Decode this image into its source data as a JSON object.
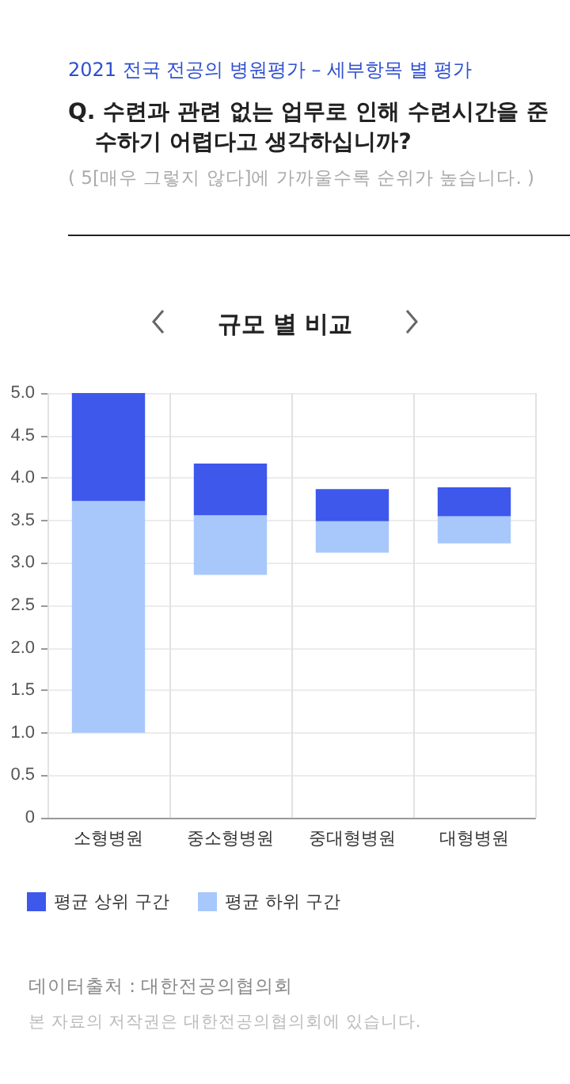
{
  "chart_data": {
    "type": "bar",
    "title": "규모 별 비교",
    "annotations": [
      "2021 전국 전공의 병원평가 – 세부항목 별 평가",
      "Q. 수련과 관련 없는 업무로 인해 수련시간을 준수하기 어렵다고 생각하십니까?",
      "( 5[매우 그렇지 않다]에 가까울수록 순위가 높습니다. )",
      "데이터출처 : 대한전공의협의회",
      "본 자료의 저작권은 대한전공의협의회에 있습니다."
    ],
    "categories": [
      "소형병원",
      "중소형병원",
      "중대형병원",
      "대형병원"
    ],
    "series": [
      {
        "name": "평균 하위 구간",
        "color": "#a8c8fc",
        "base": [
          1.0,
          2.86,
          3.12,
          3.23
        ],
        "values": [
          2.73,
          0.7,
          0.37,
          0.32
        ]
      },
      {
        "name": "평균 상위 구간",
        "color": "#3d58eb",
        "base": [
          3.73,
          3.56,
          3.49,
          3.55
        ],
        "values": [
          1.27,
          0.61,
          0.38,
          0.34
        ]
      }
    ],
    "ylim": [
      0,
      5
    ],
    "yticks": [
      0,
      {
        "value": 0.5,
        "label": "0.5"
      },
      {
        "value": 1,
        "label": "1.0"
      },
      {
        "value": 1.5,
        "label": "1.5"
      },
      {
        "value": 2,
        "label": "2.0"
      },
      {
        "value": 2.5,
        "label": "2.5"
      },
      {
        "value": 3,
        "label": "3.0"
      },
      {
        "value": 3.5,
        "label": "3.5"
      },
      {
        "value": 4,
        "label": "4.0"
      },
      {
        "value": 4.5,
        "label": "4.5"
      },
      {
        "value": 5,
        "label": "5.0"
      }
    ],
    "grid": true,
    "legend": "bottom left"
  }
}
